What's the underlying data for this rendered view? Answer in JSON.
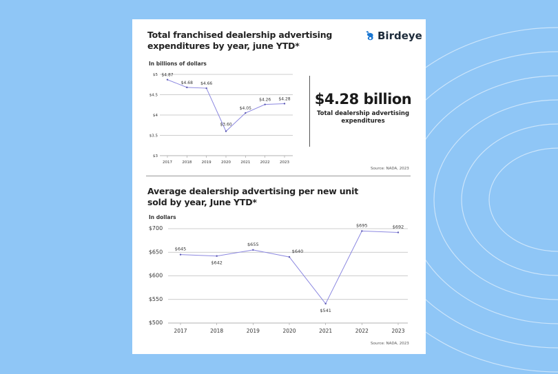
{
  "brand": {
    "name": "Birdeye",
    "color": "#1976d2"
  },
  "top": {
    "title_line1": "Total franchised dealership advertising",
    "title_line2": "expenditures by year, june YTD*",
    "unit_label": "In billions of dollars",
    "highlight_value": "$4.28 billion",
    "highlight_line1": "Total dealership advertising",
    "highlight_line2": "expenditures",
    "source": "Source: NADA, 2023"
  },
  "bottom": {
    "title_line1": "Average dealership advertising per new unit",
    "title_line2": "sold by year, June YTD*",
    "unit_label": "In dollars",
    "source": "Source: NADA, 2023"
  },
  "chart_data": [
    {
      "type": "line",
      "categories": [
        "2017",
        "2018",
        "2019",
        "2020",
        "2021",
        "2022",
        "2023"
      ],
      "values": [
        4.87,
        4.68,
        4.66,
        3.6,
        4.05,
        4.26,
        4.28
      ],
      "data_labels": [
        "$4.87",
        "$4.68",
        "$4.66",
        "$3.60",
        "$4.05",
        "$4.26",
        "$4.28"
      ],
      "ylabel": "In billions of dollars",
      "ylim": [
        3,
        5
      ],
      "yticks": [
        5,
        4.5,
        4,
        3.5,
        3
      ],
      "ytick_labels": [
        "$5",
        "$4.5",
        "$4",
        "$3.5",
        "$3"
      ],
      "grid": true,
      "line_color": "#8b87e0"
    },
    {
      "type": "line",
      "categories": [
        "2017",
        "2018",
        "2019",
        "2020",
        "2021",
        "2022",
        "2023"
      ],
      "values": [
        645,
        642,
        655,
        640,
        541,
        695,
        692
      ],
      "data_labels": [
        "$645",
        "$642",
        "$655",
        "$640",
        "$541",
        "$695",
        "$692"
      ],
      "ylabel": "In dollars",
      "ylim": [
        500,
        700
      ],
      "yticks": [
        700,
        650,
        600,
        550,
        500
      ],
      "ytick_labels": [
        "$700",
        "$650",
        "$600",
        "$550",
        "$500"
      ],
      "grid": true,
      "line_color": "#8b87e0"
    }
  ]
}
